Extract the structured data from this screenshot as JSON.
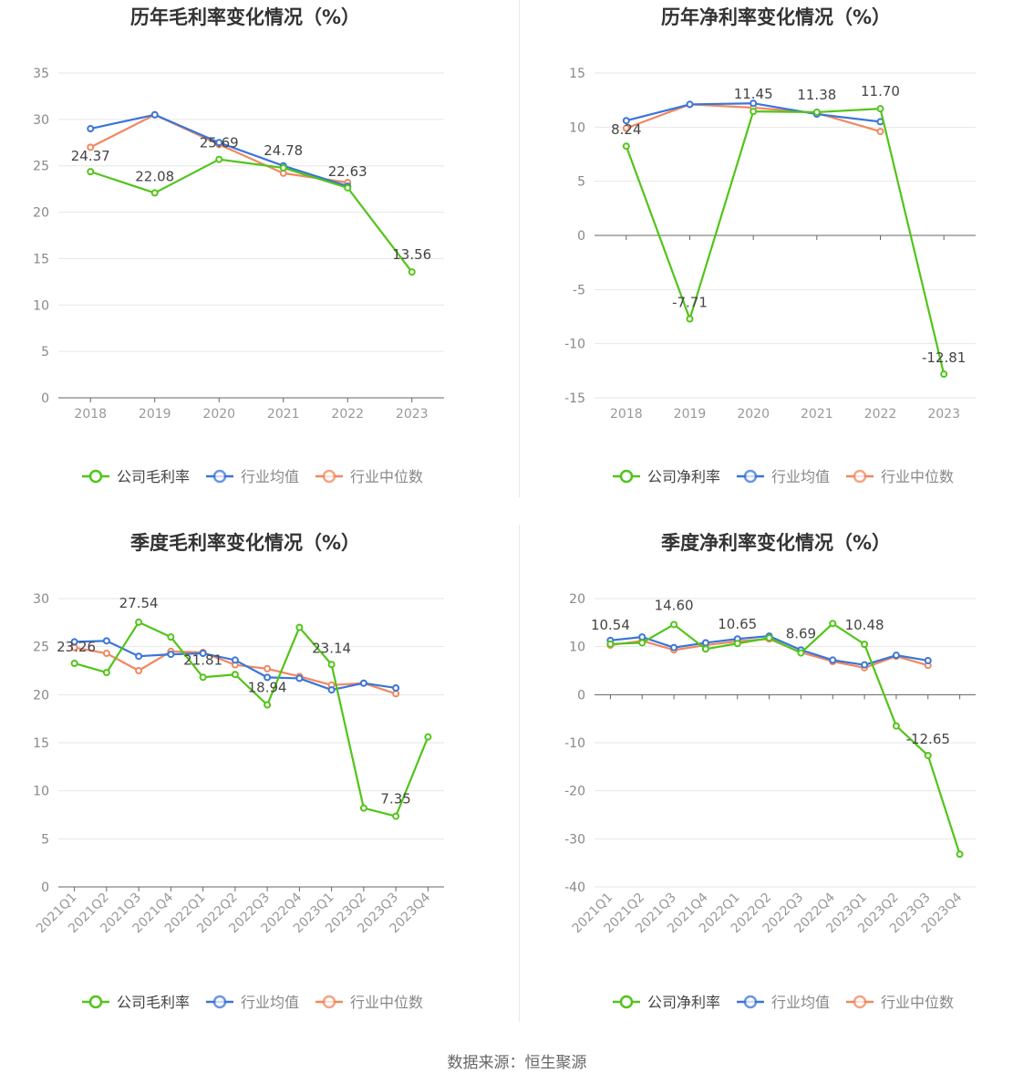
{
  "colors": {
    "company": "#52c41a",
    "industry_avg": "#3a75d8",
    "industry_median": "#f08860",
    "grid": "#e6e6e6",
    "axis": "#666666",
    "title": "#333333"
  },
  "legend_icons": {
    "company": "circle-line-icon",
    "industry_avg": "circle-line-icon",
    "industry_median": "circle-line-icon"
  },
  "source": "数据来源：恒生聚源",
  "chart_data": [
    {
      "id": "annual-gross",
      "type": "line",
      "title": "历年毛利率变化情况（%）",
      "categories": [
        "2018",
        "2019",
        "2020",
        "2021",
        "2022",
        "2023"
      ],
      "ylim": [
        0,
        35
      ],
      "yticks": [
        0,
        5,
        10,
        15,
        20,
        25,
        30,
        35
      ],
      "grid": true,
      "legend_position": "bottom",
      "series": [
        {
          "key": "company",
          "name": "公司毛利率",
          "values": [
            24.37,
            22.08,
            25.69,
            24.78,
            22.63,
            13.56
          ],
          "labels": [
            "24.37",
            "22.08",
            "25.69",
            "24.78",
            "22.63",
            "13.56"
          ]
        },
        {
          "key": "industry_avg",
          "name": "行业均值",
          "values": [
            29.0,
            30.5,
            27.5,
            25.0,
            22.8,
            null
          ]
        },
        {
          "key": "industry_median",
          "name": "行业中位数",
          "values": [
            27.0,
            30.5,
            27.3,
            24.2,
            23.2,
            null
          ]
        }
      ]
    },
    {
      "id": "annual-net",
      "type": "line",
      "title": "历年净利率变化情况（%）",
      "categories": [
        "2018",
        "2019",
        "2020",
        "2021",
        "2022",
        "2023"
      ],
      "ylim": [
        -15,
        15
      ],
      "yticks": [
        -15,
        -10,
        -5,
        0,
        5,
        10,
        15
      ],
      "grid": true,
      "legend_position": "bottom",
      "series": [
        {
          "key": "company",
          "name": "公司净利率",
          "values": [
            8.24,
            -7.71,
            11.45,
            11.38,
            11.7,
            -12.81
          ],
          "labels": [
            "8.24",
            "-7.71",
            "11.45",
            "11.38",
            "11.70",
            "-12.81"
          ]
        },
        {
          "key": "industry_avg",
          "name": "行业均值",
          "values": [
            10.6,
            12.1,
            12.2,
            11.2,
            10.5,
            null
          ]
        },
        {
          "key": "industry_median",
          "name": "行业中位数",
          "values": [
            9.9,
            12.1,
            11.8,
            11.3,
            9.6,
            null
          ]
        }
      ]
    },
    {
      "id": "quarterly-gross",
      "type": "line",
      "title": "季度毛利率变化情况（%）",
      "categories": [
        "2021Q1",
        "2021Q2",
        "2021Q3",
        "2021Q4",
        "2022Q1",
        "2022Q2",
        "2022Q3",
        "2022Q4",
        "2023Q1",
        "2023Q2",
        "2023Q3",
        "2023Q4"
      ],
      "ylim": [
        0,
        30
      ],
      "yticks": [
        0,
        5,
        10,
        15,
        20,
        25,
        30
      ],
      "grid": true,
      "legend_position": "bottom",
      "series": [
        {
          "key": "company",
          "name": "公司毛利率",
          "values": [
            23.26,
            22.3,
            27.54,
            26.0,
            21.81,
            22.1,
            18.94,
            27.0,
            23.14,
            8.2,
            7.35,
            15.6
          ],
          "labels": [
            "23.26",
            null,
            "27.54",
            null,
            "21.81",
            null,
            "18.94",
            null,
            "23.14",
            null,
            "7.35",
            null
          ]
        },
        {
          "key": "industry_avg",
          "name": "行业均值",
          "values": [
            25.5,
            25.6,
            24.0,
            24.2,
            24.3,
            23.6,
            21.8,
            21.7,
            20.5,
            21.2,
            20.7,
            null
          ]
        },
        {
          "key": "industry_median",
          "name": "行业中位数",
          "values": [
            24.9,
            24.3,
            22.5,
            24.5,
            24.4,
            23.1,
            22.7,
            21.9,
            21.0,
            21.2,
            20.1,
            null
          ]
        }
      ]
    },
    {
      "id": "quarterly-net",
      "type": "line",
      "title": "季度净利率变化情况（%）",
      "categories": [
        "2021Q1",
        "2021Q2",
        "2021Q3",
        "2021Q4",
        "2022Q1",
        "2022Q2",
        "2022Q3",
        "2022Q4",
        "2023Q1",
        "2023Q2",
        "2023Q3",
        "2023Q4"
      ],
      "ylim": [
        -40,
        20
      ],
      "yticks": [
        -40,
        -30,
        -20,
        -10,
        0,
        10,
        20
      ],
      "grid": true,
      "legend_position": "bottom",
      "series": [
        {
          "key": "company",
          "name": "公司净利率",
          "values": [
            10.54,
            10.8,
            14.6,
            9.5,
            10.65,
            11.8,
            8.69,
            14.8,
            10.48,
            -6.5,
            -12.65,
            -33.2
          ],
          "labels": [
            "10.54",
            null,
            "14.60",
            null,
            "10.65",
            null,
            "8.69",
            null,
            "10.48",
            null,
            "-12.65",
            null
          ]
        },
        {
          "key": "industry_avg",
          "name": "行业均值",
          "values": [
            11.3,
            12.0,
            9.8,
            10.8,
            11.6,
            12.2,
            9.3,
            7.2,
            6.2,
            8.2,
            7.1,
            null
          ]
        },
        {
          "key": "industry_median",
          "name": "行业中位数",
          "values": [
            10.3,
            11.2,
            9.3,
            10.3,
            11.1,
            11.6,
            8.8,
            6.9,
            5.6,
            8.0,
            6.1,
            null
          ]
        }
      ]
    }
  ]
}
